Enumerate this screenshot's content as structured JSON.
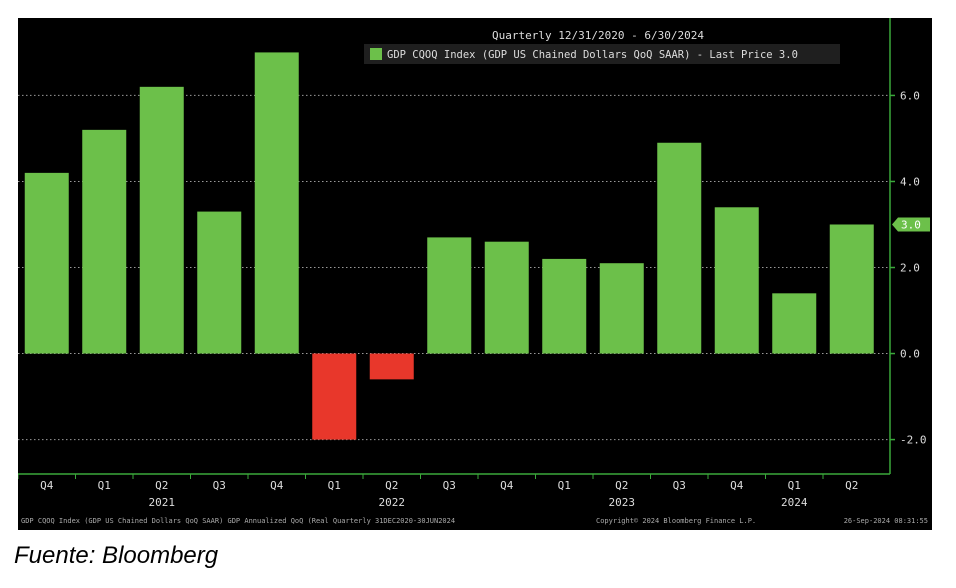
{
  "source_caption": "Fuente: Bloomberg",
  "chart_data": {
    "type": "bar",
    "title": "Quarterly 12/31/2020 - 6/30/2024",
    "legend_label": "GDP CQOQ Index (GDP US Chained Dollars QoQ SAAR) - Last Price 3.0",
    "last_price_label": "3.0",
    "categories": [
      "Q4",
      "Q1",
      "Q2",
      "Q3",
      "Q4",
      "Q1",
      "Q2",
      "Q3",
      "Q4",
      "Q1",
      "Q2",
      "Q3",
      "Q4",
      "Q1",
      "Q2"
    ],
    "year_labels": [
      {
        "label": "2021",
        "index": 2
      },
      {
        "label": "2022",
        "index": 6
      },
      {
        "label": "2023",
        "index": 10
      },
      {
        "label": "2024",
        "index": 13
      }
    ],
    "values": [
      4.2,
      5.2,
      6.2,
      3.3,
      7.0,
      -2.0,
      -0.6,
      2.7,
      2.6,
      2.2,
      2.1,
      4.9,
      3.4,
      1.4,
      3.0
    ],
    "ylim": [
      -2.8,
      7.8
    ],
    "yticks": [
      "6.0",
      "4.0",
      "2.0",
      "0.0",
      "-2.0"
    ],
    "ytick_values": [
      6,
      4,
      2,
      0,
      -2
    ],
    "y_axis_position": "right",
    "grid": true,
    "colors": {
      "positive": "#6cc04a",
      "negative": "#e8372b",
      "background": "#000000",
      "axis": "#3aa83a",
      "text": "#dddddd"
    },
    "footer_left": "GDP CQOQ Index (GDP US Chained Dollars QoQ SAAR) GDP Annualized QoQ (Real Quarterly 31DEC2020-30JUN2024",
    "footer_center": "Copyright© 2024 Bloomberg Finance L.P.",
    "footer_right": "26-Sep-2024 08:31:55"
  }
}
